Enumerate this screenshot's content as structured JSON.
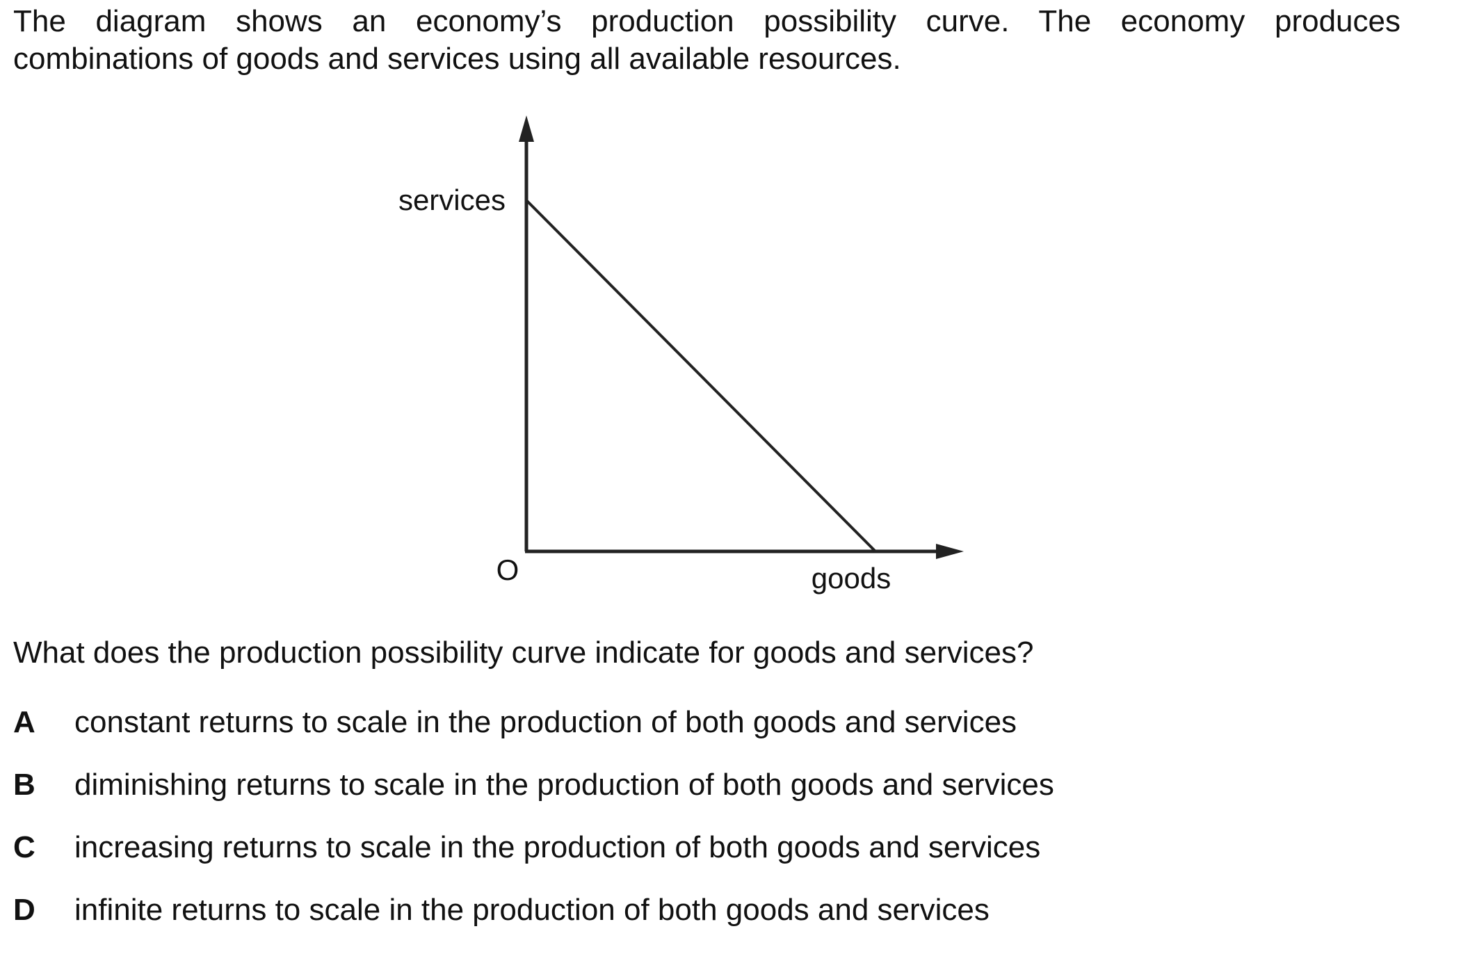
{
  "intro": {
    "line1": "The diagram shows an economy’s production possibility curve. The economy produces",
    "line2": "combinations of goods and services using all available resources."
  },
  "diagram": {
    "y_axis_label": "services",
    "x_axis_label": "goods",
    "origin_label": "O"
  },
  "question": "What does the production possibility curve indicate for goods and services?",
  "options": [
    {
      "letter": "A",
      "text": "constant returns to scale in the production of both goods and services"
    },
    {
      "letter": "B",
      "text": "diminishing returns to scale in the production of both goods and services"
    },
    {
      "letter": "C",
      "text": "increasing returns to scale in the production of both goods and services"
    },
    {
      "letter": "D",
      "text": "infinite returns to scale in the production of both goods and services"
    }
  ]
}
